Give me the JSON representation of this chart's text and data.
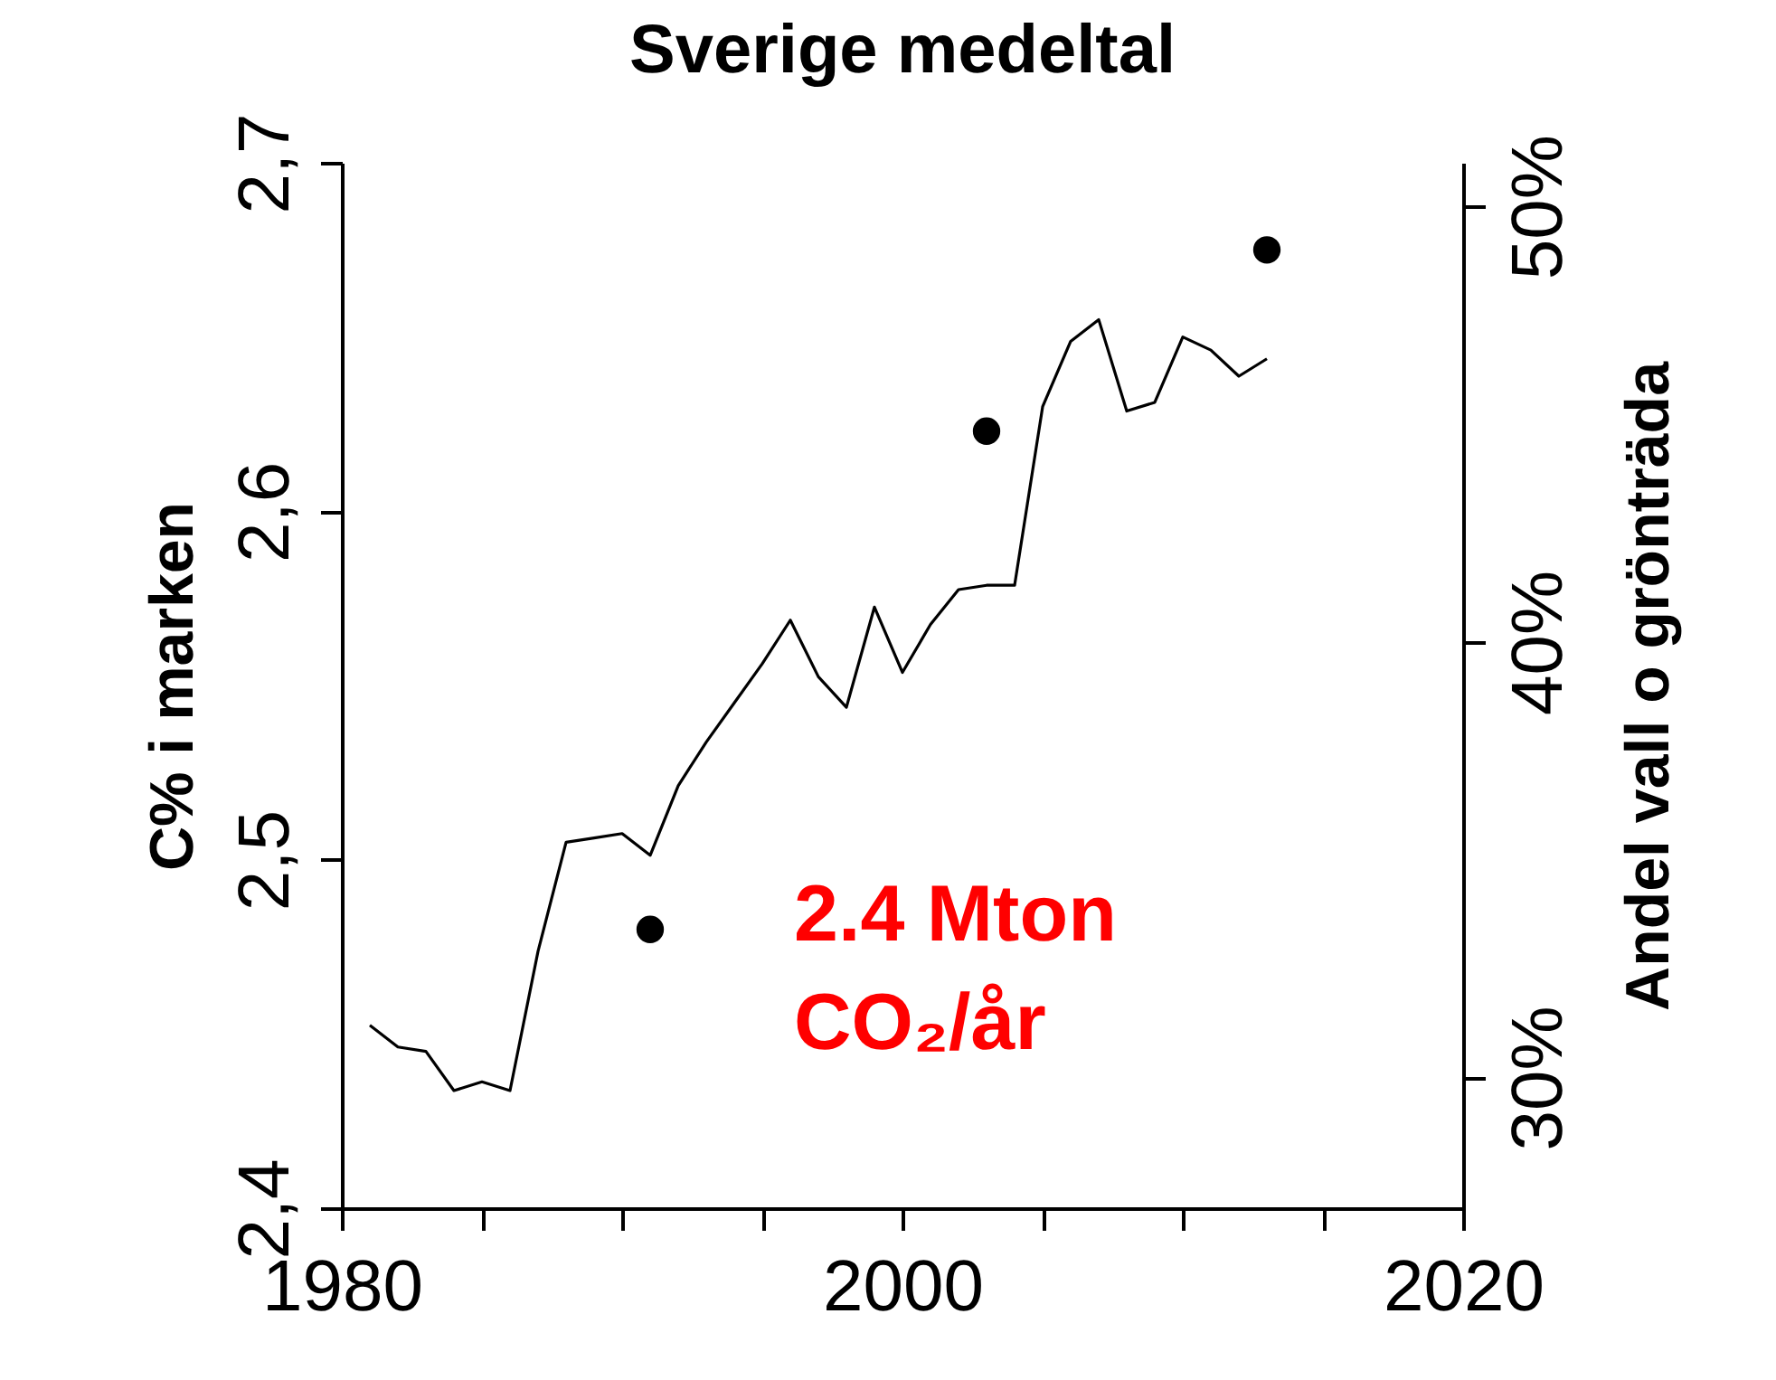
{
  "chart_data": {
    "type": "line",
    "title": "Sverige medeltal",
    "ylabel": "C% i marken",
    "y2label": "Andel vall o grönträda",
    "xlim": [
      1980,
      2020
    ],
    "xticks": [
      {
        "value": 1980,
        "label": "1980"
      },
      {
        "value": 1985,
        "label": null
      },
      {
        "value": 1990,
        "label": null
      },
      {
        "value": 1995,
        "label": null
      },
      {
        "value": 2000,
        "label": "2000"
      },
      {
        "value": 2005,
        "label": null
      },
      {
        "value": 2010,
        "label": null
      },
      {
        "value": 2015,
        "label": null
      },
      {
        "value": 2020,
        "label": "2020"
      }
    ],
    "ylim": [
      2.4,
      2.7
    ],
    "yticks": [
      {
        "value": 2.4,
        "label": "2,4"
      },
      {
        "value": 2.5,
        "label": "2,5"
      },
      {
        "value": 2.6,
        "label": "2,6"
      },
      {
        "value": 2.7,
        "label": "2,7"
      }
    ],
    "y2lim": [
      27,
      51
    ],
    "y2ticks": [
      {
        "value": 30,
        "label": "30%"
      },
      {
        "value": 40,
        "label": "40%"
      },
      {
        "value": 50,
        "label": "50%"
      }
    ],
    "series": [
      {
        "axis": "y2",
        "color": "#000000",
        "x": [
          1981,
          1982,
          1983,
          1984,
          1985,
          1986,
          1987,
          1988,
          1989,
          1990,
          1991,
          1992,
          1993,
          1994,
          1995,
          1996,
          1997,
          1998,
          1999,
          2000,
          2001,
          2002,
          2003,
          2004,
          2005,
          2006,
          2007,
          2008,
          2009,
          2010,
          2011,
          2012,
          2013
        ],
        "values": [
          31.2,
          30.7,
          30.6,
          29.7,
          29.9,
          29.7,
          32.9,
          35.4,
          35.5,
          35.6,
          35.1,
          36.7,
          37.7,
          38.6,
          39.5,
          40.5,
          39.2,
          38.5,
          40.8,
          39.3,
          40.4,
          41.2,
          41.3,
          41.3,
          45.4,
          46.9,
          47.4,
          45.3,
          45.5,
          47.0,
          46.7,
          46.1,
          46.5
        ]
      },
      {
        "type": "scatter",
        "color": "#000000",
        "x": [
          1991,
          2003,
          2013
        ],
        "values": [
          2.48,
          2.623,
          2.675
        ]
      }
    ],
    "annotations": [
      "2.4 Mton\nCO₂/år"
    ],
    "grid": false,
    "legend": false
  }
}
